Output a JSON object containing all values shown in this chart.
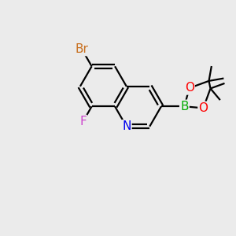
{
  "background_color": "#ebebeb",
  "bond_color": "#000000",
  "atom_colors": {
    "Br": "#c87020",
    "F": "#cc44cc",
    "N": "#0000ee",
    "O": "#ff0000",
    "B": "#00aa00",
    "C": "#000000"
  },
  "font_size_atoms": 11,
  "font_size_methyl": 9,
  "line_width": 1.6,
  "bl": 1.0
}
